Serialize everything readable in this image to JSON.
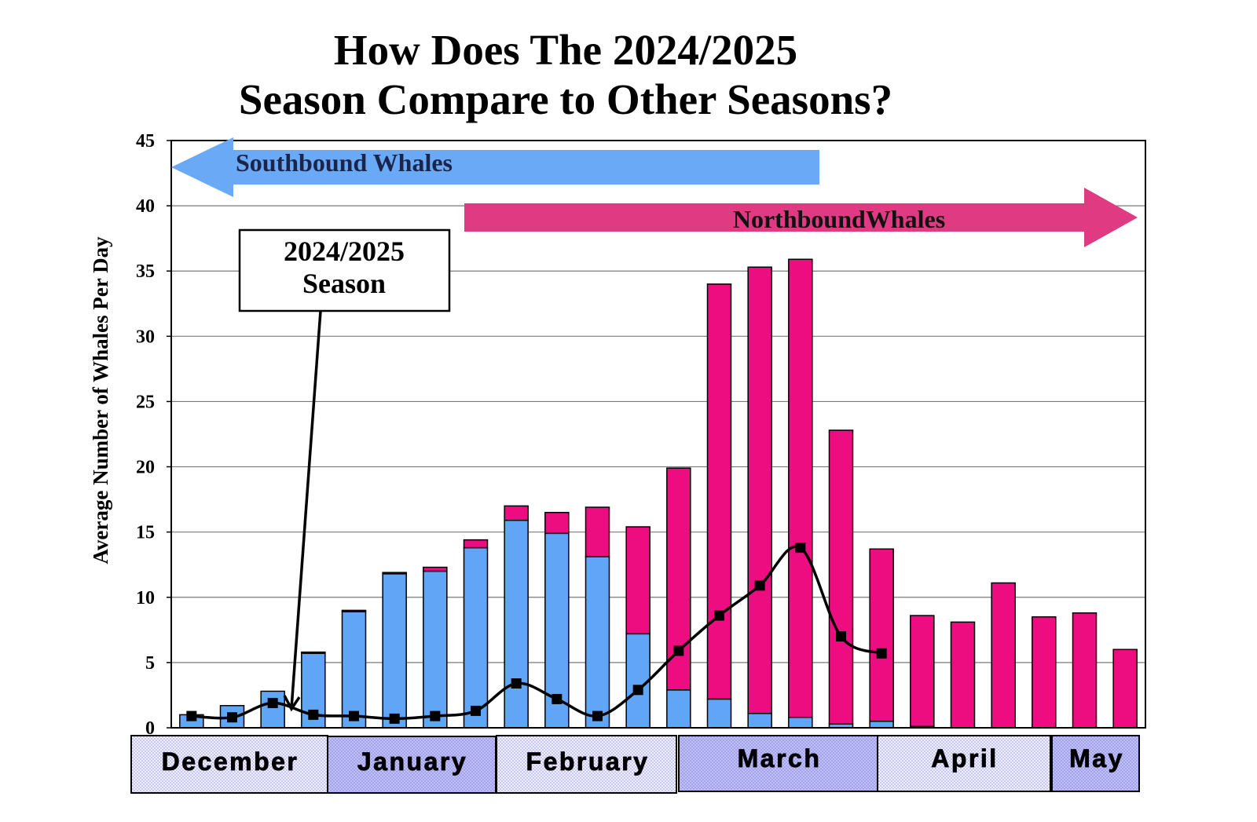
{
  "chart_data": {
    "type": "bar",
    "stacked": true,
    "title_lines": [
      "How Does The 2024/2025",
      "Season Compare to Other Seasons?"
    ],
    "xlabel": "",
    "ylabel": "Average Number of Whales Per Day",
    "ylim": [
      0,
      45
    ],
    "yticks": [
      0,
      5,
      10,
      15,
      20,
      25,
      30,
      35,
      40,
      45
    ],
    "grid": true,
    "x_month_labels": [
      "December",
      "January",
      "February",
      "March",
      "April",
      "May"
    ],
    "series": [
      {
        "name": "Southbound Whales",
        "type": "bar",
        "color": "#61a6f6",
        "arrow_color": "#6aa9f6",
        "label_color": "#1b2449",
        "values": [
          1.0,
          1.7,
          2.8,
          5.7,
          8.9,
          11.8,
          12.0,
          13.8,
          15.9,
          14.9,
          13.1,
          7.2,
          2.9,
          2.2,
          1.1,
          0.8,
          0.3,
          0.5,
          0.1,
          0,
          0,
          0,
          0,
          0
        ]
      },
      {
        "name": "NorthboundWhales",
        "type": "bar",
        "color": "#ee0d80",
        "arrow_color": "#df3a82",
        "label_color": "#111111",
        "values": [
          0,
          0,
          0,
          0.1,
          0.1,
          0.1,
          0.3,
          0.6,
          1.1,
          1.6,
          3.8,
          8.2,
          17.0,
          31.8,
          34.2,
          35.1,
          22.5,
          13.2,
          8.5,
          8.1,
          11.1,
          8.5,
          8.8,
          6.0
        ]
      },
      {
        "type": "line",
        "color": "#000000",
        "marker": "square",
        "label_lines": [
          "2024/2025",
          "Season"
        ],
        "values": [
          0.9,
          0.8,
          1.9,
          1.0,
          0.9,
          0.7,
          0.9,
          1.3,
          3.4,
          2.2,
          0.9,
          2.9,
          5.9,
          8.6,
          10.9,
          13.8,
          7.0,
          5.7,
          null,
          null,
          null,
          null,
          null,
          null
        ]
      }
    ]
  }
}
